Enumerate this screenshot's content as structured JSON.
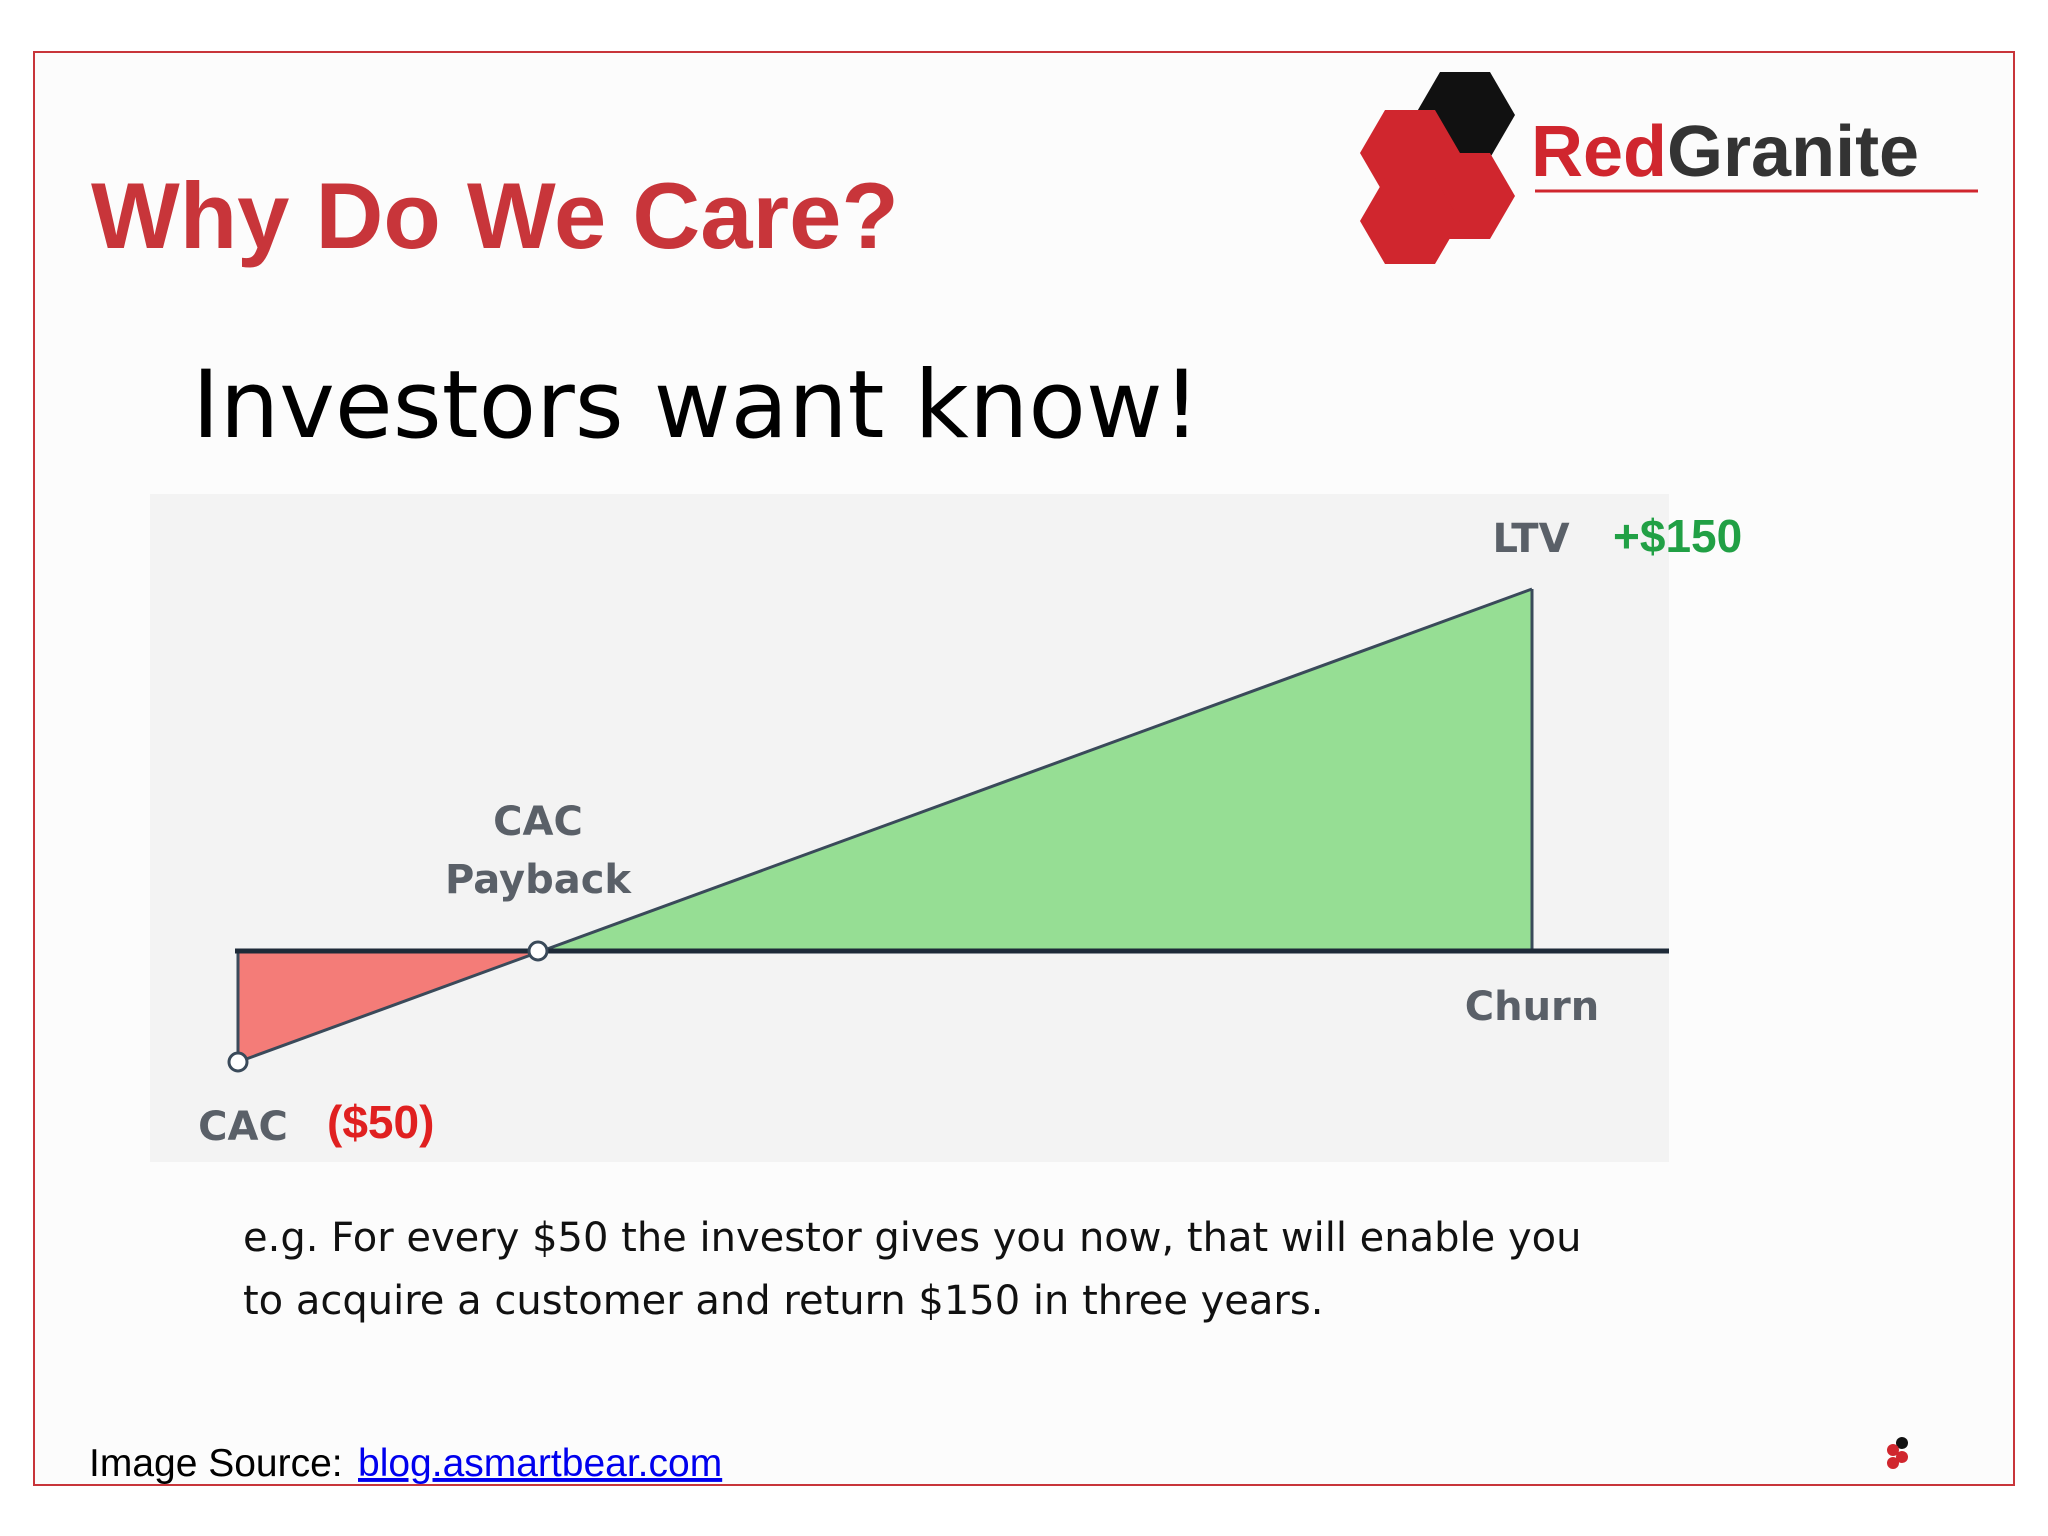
{
  "header": {
    "title": "Why Do We Care?",
    "logo": {
      "red": "Red",
      "gray": "Granite"
    }
  },
  "subtitle": "Investors want know!",
  "diagram": {
    "cac": "CAC",
    "cac_value": "($50)",
    "payback": [
      "CAC",
      "Payback"
    ],
    "ltv": "LTV",
    "ltv_value": "+$150",
    "churn": "Churn"
  },
  "caption": [
    "e.g. For every $50 the investor gives you now, that will enable you",
    "to acquire a customer and return $150 in three years."
  ],
  "source": {
    "label": "Image Source:",
    "link": "blog.asmartbear.com"
  }
}
